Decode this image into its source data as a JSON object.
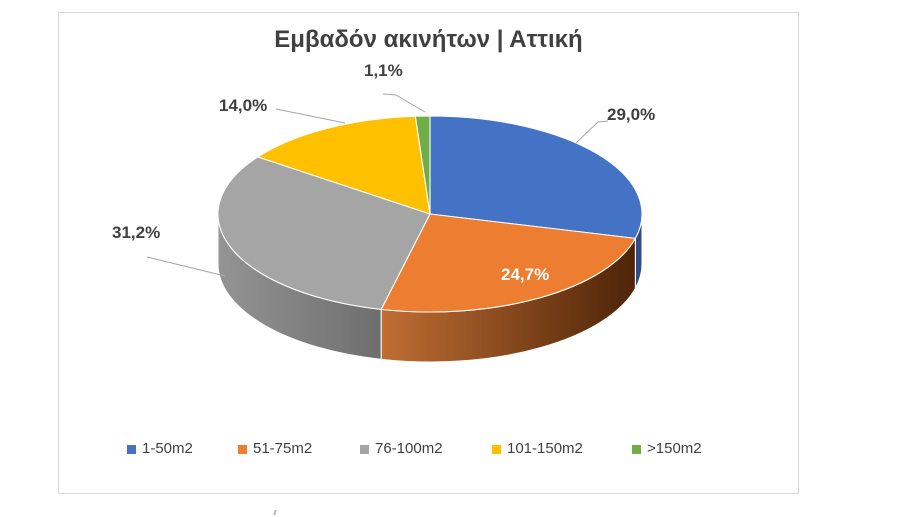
{
  "page": {
    "background": "#FFFFFF"
  },
  "chart": {
    "frame_border_color": "#D9D9D9",
    "title_color": "#404040",
    "label_color": "#404040",
    "inside_label_color": "#FFFFFF",
    "leader_line_color": "#A6A6A6"
  },
  "chart_data": {
    "type": "pie",
    "style": "3d",
    "title": "Εμβαδόν ακινήτων | Αττική",
    "categories": [
      "1-50m2",
      "51-75m2",
      "76-100m2",
      "101-150m2",
      ">150m2"
    ],
    "values": [
      29.0,
      24.7,
      31.2,
      14.0,
      1.1
    ],
    "value_labels": [
      "29,0%",
      "24,7%",
      "31,2%",
      "14,0%",
      "1,1%"
    ],
    "unit": "%",
    "colors": [
      "#4472C4",
      "#ED7D31",
      "#A5A5A5",
      "#FFC000",
      "#70AD47"
    ],
    "wall_colors": [
      [
        "#2E4D86",
        "#2E4D86"
      ],
      [
        "#C06E33",
        "#4E2408"
      ],
      [
        "#949494",
        "#6E6E6E"
      ],
      null,
      null
    ],
    "start_angle": 0,
    "direction": "clockwise",
    "legend_position": "bottom",
    "grid": false
  }
}
